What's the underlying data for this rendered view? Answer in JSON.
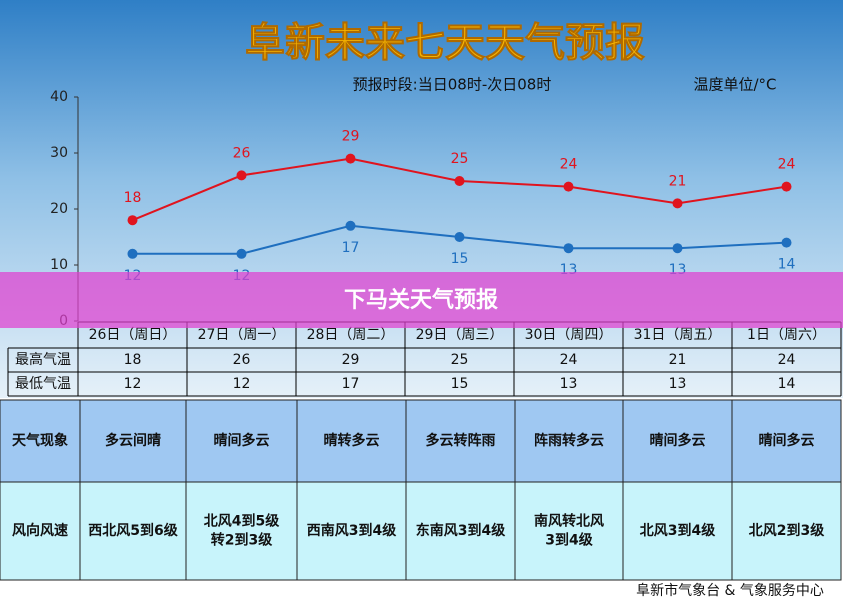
{
  "chart_data": {
    "type": "line",
    "title": "阜新未来七天天气预报",
    "subtitle": "预报时段:当日08时-次日08时",
    "unit_label": "温度单位/°C",
    "categories": [
      "26日（周日）",
      "27日（周一）",
      "28日（周二）",
      "29日（周三）",
      "30日（周四）",
      "31日（周五）",
      "1日（周六）"
    ],
    "series": [
      {
        "name": "最高气温",
        "color": "#e0141e",
        "values": [
          18,
          26,
          29,
          25,
          24,
          21,
          24
        ]
      },
      {
        "name": "最低气温",
        "color": "#1f6fbf",
        "values": [
          12,
          12,
          17,
          15,
          13,
          13,
          14
        ]
      }
    ],
    "ylim": [
      0,
      40
    ],
    "yticks": [
      0,
      10,
      20,
      30,
      40
    ],
    "grid": false
  },
  "table": {
    "rows": [
      {
        "label": "天气现象",
        "cells": [
          [
            "多云间晴"
          ],
          [
            "晴间多云"
          ],
          [
            "晴转多云"
          ],
          [
            "多云转阵雨"
          ],
          [
            "阵雨转多云"
          ],
          [
            "晴间多云"
          ],
          [
            "晴间多云"
          ]
        ]
      },
      {
        "label": "风向风速",
        "cells": [
          [
            "西北风5到6级"
          ],
          [
            "北风4到5级",
            "转2到3级"
          ],
          [
            "西南风3到4级"
          ],
          [
            "东南风3到4级"
          ],
          [
            "南风转北风",
            "3到4级"
          ],
          [
            "北风3到4级"
          ],
          [
            "北风2到3级"
          ]
        ]
      }
    ]
  },
  "banner": "下马关天气预报",
  "footer": "阜新市气象台 & 气象服务中心"
}
